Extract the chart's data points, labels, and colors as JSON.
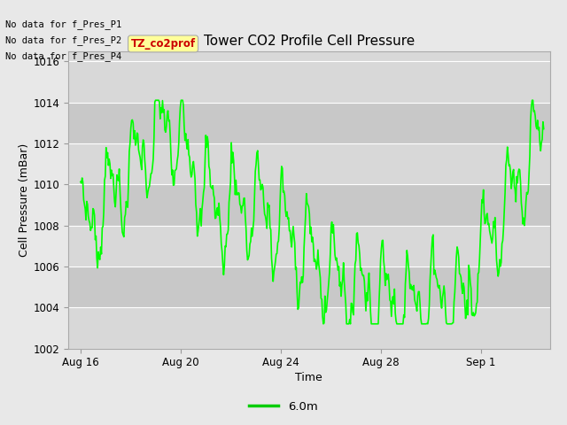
{
  "title": "Tower CO2 Profile Cell Pressure",
  "xlabel": "Time",
  "ylabel": "Cell Pressure (mBar)",
  "ylim": [
    1002,
    1016.5
  ],
  "yticks": [
    1002,
    1004,
    1006,
    1008,
    1010,
    1012,
    1014,
    1016
  ],
  "line_color": "#00FF00",
  "line_width": 1.2,
  "bg_color": "#E8E8E8",
  "plot_bg_color": "#D8D8D8",
  "legend_label": "6.0m",
  "legend_color": "#00CC00",
  "no_data_texts": [
    "No data for f_Pres_P1",
    "No data for f_Pres_P2",
    "No data for f_Pres_P4"
  ],
  "tag_text": "TZ_co2prof",
  "tag_bg": "#FFFF99",
  "tag_fg": "#CC0000",
  "seed": 7,
  "n_points": 600,
  "end_day": 18.5,
  "band_colors": [
    "#D8D8D8",
    "#C8C8C8"
  ]
}
